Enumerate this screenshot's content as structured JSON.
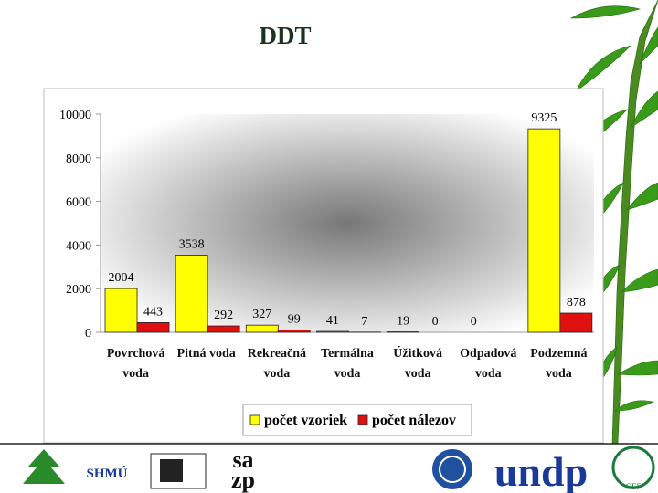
{
  "chart_data": {
    "type": "bar",
    "title": "DDT",
    "categories": [
      "Povrchová voda",
      "Pitná voda",
      "Rekreačná voda",
      "Termálna voda",
      "Úžitková voda",
      "Odpadová voda",
      "Podzemná voda"
    ],
    "series": [
      {
        "name": "počet vzoriek",
        "color": "#ffff00",
        "values": [
          2004,
          3538,
          327,
          41,
          19,
          0,
          9325
        ]
      },
      {
        "name": "počet nálezov",
        "color": "#e01010",
        "values": [
          443,
          292,
          99,
          7,
          0,
          null,
          878
        ]
      }
    ],
    "ylim": [
      0,
      10000
    ],
    "yticks": [
      0,
      2000,
      4000,
      6000,
      8000,
      10000
    ],
    "legend": "bottom"
  },
  "footer_logos": [
    "SHMÚ",
    "sa",
    "zp",
    "undp",
    "GEF"
  ]
}
